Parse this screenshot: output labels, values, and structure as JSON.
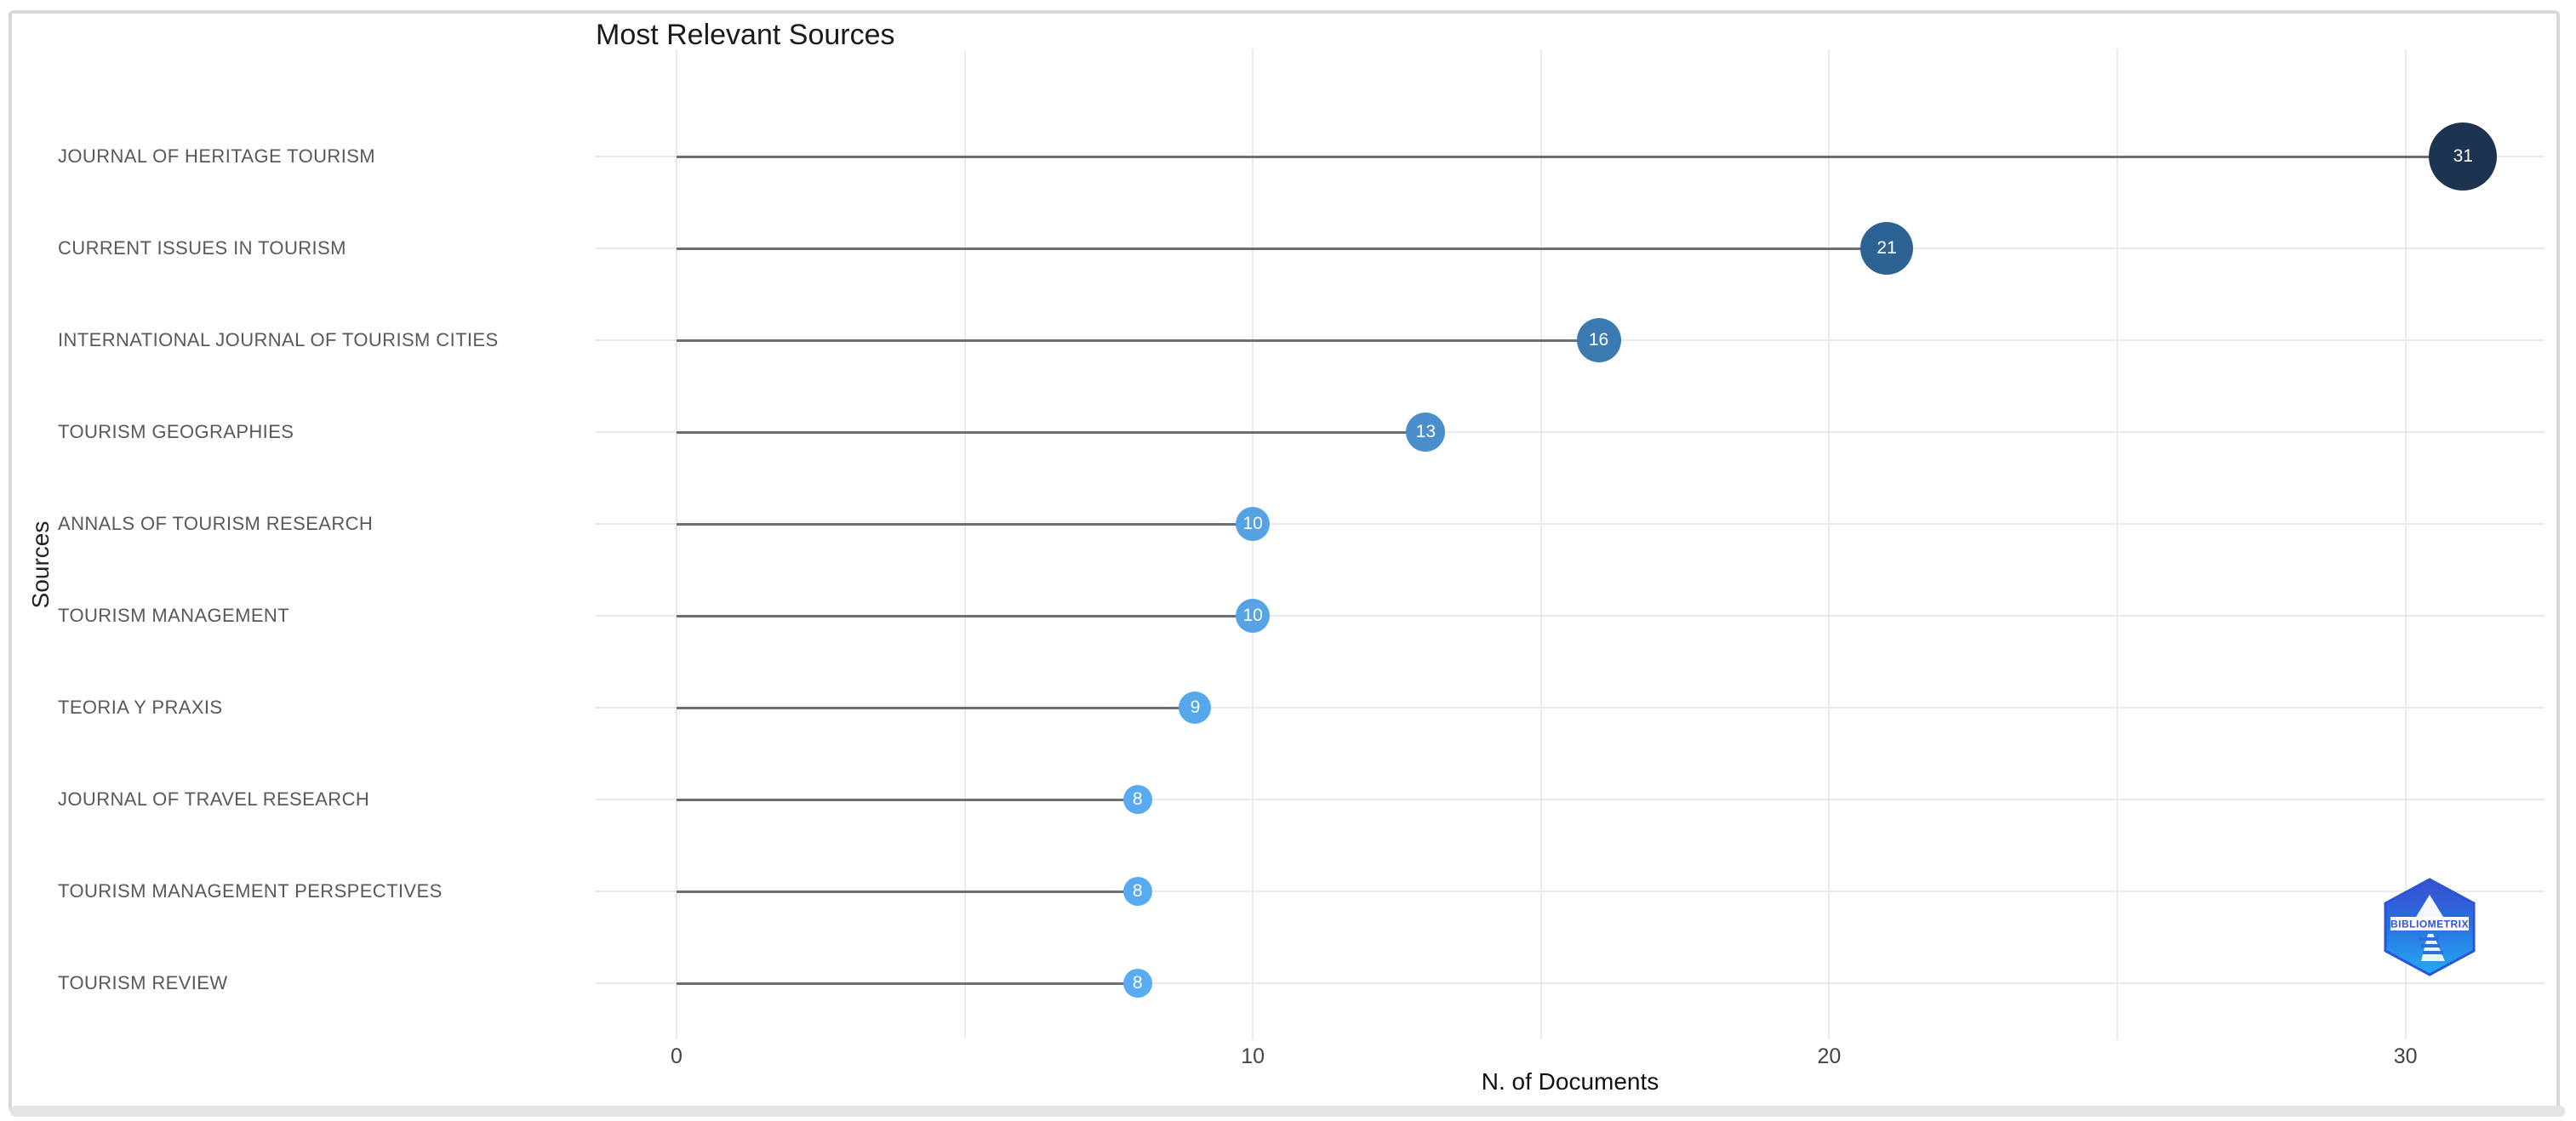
{
  "chart_data": {
    "type": "scatter",
    "subtype": "lollipop",
    "title": "Most Relevant Sources",
    "xlabel": "N. of Documents",
    "ylabel": "Sources",
    "xlim": [
      -1.5,
      32.5
    ],
    "x_ticks": [
      0,
      10,
      20,
      30
    ],
    "x_gridlines": [
      0,
      5,
      10,
      15,
      20,
      25,
      30
    ],
    "grid": "on",
    "legend": "none",
    "categories": [
      "JOURNAL OF HERITAGE TOURISM",
      "CURRENT ISSUES IN TOURISM",
      "INTERNATIONAL JOURNAL OF TOURISM CITIES",
      "TOURISM GEOGRAPHIES",
      "ANNALS OF TOURISM RESEARCH",
      "TOURISM MANAGEMENT",
      "TEORIA Y PRAXIS",
      "JOURNAL OF TRAVEL RESEARCH",
      "TOURISM MANAGEMENT PERSPECTIVES",
      "TOURISM REVIEW"
    ],
    "values": [
      31,
      21,
      16,
      13,
      10,
      10,
      9,
      8,
      8,
      8
    ],
    "point_colors": [
      "#1d3450",
      "#2d6394",
      "#3c7bb1",
      "#4a8ecb",
      "#55a1e2",
      "#56a3e5",
      "#57a7ec",
      "#58aaf2",
      "#58aaf2",
      "#59abf4"
    ],
    "point_radii": [
      40,
      31,
      26,
      23,
      20,
      20,
      19,
      17,
      17,
      17
    ],
    "stem_color": "#6e6e6e",
    "gridline_color": "#ebebeb"
  },
  "header": {
    "title": "Most Relevant Sources"
  },
  "axes": {
    "x_title": "N. of Documents",
    "y_title": "Sources",
    "x_tick_labels": [
      "0",
      "10",
      "20",
      "30"
    ]
  },
  "logo": {
    "name": "bibliometrix-logo",
    "text": "BIBLIOMETRIX",
    "color_top": "#3c4ed0",
    "color_bottom": "#25aaf2"
  }
}
